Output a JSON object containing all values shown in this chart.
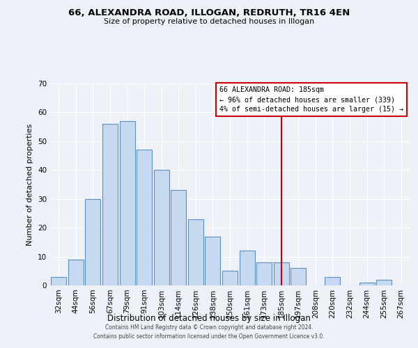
{
  "title": "66, ALEXANDRA ROAD, ILLOGAN, REDRUTH, TR16 4EN",
  "subtitle": "Size of property relative to detached houses in Illogan",
  "xlabel": "Distribution of detached houses by size in Illogan",
  "ylabel": "Number of detached properties",
  "bar_labels": [
    "32sqm",
    "44sqm",
    "56sqm",
    "67sqm",
    "79sqm",
    "91sqm",
    "103sqm",
    "114sqm",
    "126sqm",
    "138sqm",
    "150sqm",
    "161sqm",
    "173sqm",
    "185sqm",
    "197sqm",
    "208sqm",
    "220sqm",
    "232sqm",
    "244sqm",
    "255sqm",
    "267sqm"
  ],
  "bar_values": [
    3,
    9,
    30,
    56,
    57,
    47,
    40,
    33,
    23,
    17,
    5,
    12,
    8,
    8,
    6,
    0,
    3,
    0,
    1,
    2,
    0
  ],
  "bar_color": "#c6d9f1",
  "bar_edge_color": "#5a8fc4",
  "vline_x": 13,
  "vline_color": "#cc0000",
  "ylim": [
    0,
    70
  ],
  "yticks": [
    0,
    10,
    20,
    30,
    40,
    50,
    60,
    70
  ],
  "annotation_title": "66 ALEXANDRA ROAD: 185sqm",
  "annotation_line1": "← 96% of detached houses are smaller (339)",
  "annotation_line2": "4% of semi-detached houses are larger (15) →",
  "footer1": "Contains HM Land Registry data © Crown copyright and database right 2024.",
  "footer2": "Contains public sector information licensed under the Open Government Licence v3.0.",
  "background_color": "#eef2f8"
}
